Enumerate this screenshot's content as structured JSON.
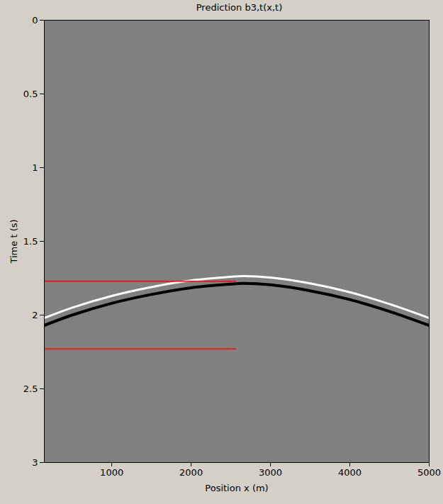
{
  "chart_data": {
    "type": "line",
    "title": "Prediction b3,t(x,t)",
    "x_label": "Position x (m)",
    "y_label": "Time t (s)",
    "xlim": [
      150,
      5000
    ],
    "xticks": [
      1000,
      2000,
      3000,
      4000,
      5000
    ],
    "ylim": [
      0,
      3
    ],
    "yticks": [
      0,
      0.5,
      1,
      1.5,
      2,
      2.5,
      3
    ],
    "grid": false,
    "series": [
      {
        "color": "#ffffff",
        "line_style": "solid",
        "x": [
          150,
          500,
          1000,
          1500,
          2000,
          2500,
          2650,
          3000,
          3500,
          4000,
          4500,
          5000
        ],
        "values": [
          2.02,
          1.95,
          1.87,
          1.81,
          1.765,
          1.74,
          1.735,
          1.745,
          1.785,
          1.845,
          1.925,
          2.02
        ]
      },
      {
        "color": "#000000",
        "line_style": "solid",
        "x": [
          150,
          500,
          1000,
          1500,
          2000,
          2500,
          2650,
          3000,
          3500,
          4000,
          4500,
          5000
        ],
        "values": [
          2.07,
          2.0,
          1.92,
          1.86,
          1.815,
          1.79,
          1.785,
          1.795,
          1.835,
          1.895,
          1.975,
          2.07
        ]
      },
      {
        "color": "#ff0000",
        "line_style": "solid",
        "x": [
          150,
          2560
        ],
        "values": [
          1.77,
          1.77
        ]
      },
      {
        "color": "#ff0000",
        "line_style": "solid",
        "x": [
          150,
          2560
        ],
        "values": [
          2.23,
          2.23
        ]
      }
    ]
  }
}
